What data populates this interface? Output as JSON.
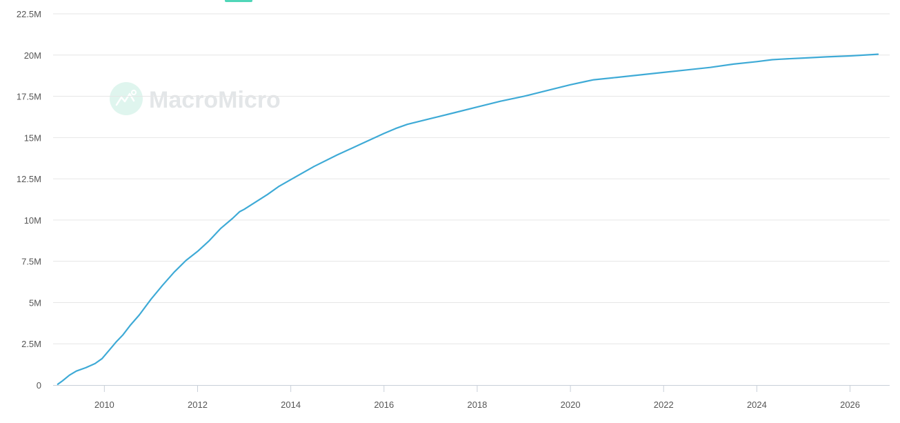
{
  "brand": {
    "watermark": "MacroMicro",
    "watermark_color": "#e3e6e8",
    "logo_color": "#dff5ee",
    "legend_chip_color": "#4fd6b8"
  },
  "chart_data": {
    "type": "line",
    "title": "",
    "xlabel": "",
    "ylabel": "",
    "xlim": [
      2008.9,
      2026.85
    ],
    "ylim": [
      0,
      22500000
    ],
    "y_ticks": [
      0,
      2500000,
      5000000,
      7500000,
      10000000,
      12500000,
      15000000,
      17500000,
      20000000,
      22500000
    ],
    "y_tick_labels": [
      "0",
      "2.5M",
      "5M",
      "7.5M",
      "10M",
      "12.5M",
      "15M",
      "17.5M",
      "20M",
      "22.5M"
    ],
    "x_ticks": [
      2010,
      2012,
      2014,
      2016,
      2018,
      2020,
      2022,
      2024,
      2026
    ],
    "x_tick_labels": [
      "2010",
      "2012",
      "2014",
      "2016",
      "2018",
      "2020",
      "2022",
      "2024",
      "2026"
    ],
    "grid": "horizontal",
    "line_color": "#3eaad6",
    "series": [
      {
        "x": [
          2009.0,
          2009.1,
          2009.25,
          2009.4,
          2009.6,
          2009.8,
          2009.95,
          2010.1,
          2010.25,
          2010.4,
          2010.55,
          2010.75,
          2011.0,
          2011.25,
          2011.5,
          2011.75,
          2012.0,
          2012.25,
          2012.5,
          2012.75,
          2012.9,
          2013.0,
          2013.25,
          2013.5,
          2013.75,
          2014.0,
          2014.5,
          2015.0,
          2015.5,
          2016.0,
          2016.25,
          2016.5,
          2017.0,
          2017.5,
          2018.0,
          2018.5,
          2019.0,
          2019.5,
          2020.0,
          2020.33,
          2020.5,
          2021.0,
          2021.5,
          2022.0,
          2022.5,
          2023.0,
          2023.5,
          2024.0,
          2024.33,
          2024.5,
          2025.0,
          2025.5,
          2026.0,
          2026.6
        ],
        "values": [
          50000,
          250000,
          600000,
          850000,
          1050000,
          1300000,
          1600000,
          2100000,
          2600000,
          3050000,
          3600000,
          4250000,
          5200000,
          6050000,
          6850000,
          7550000,
          8100000,
          8750000,
          9500000,
          10100000,
          10500000,
          10650000,
          11100000,
          11550000,
          12050000,
          12450000,
          13250000,
          13950000,
          14600000,
          15250000,
          15550000,
          15800000,
          16150000,
          16500000,
          16850000,
          17200000,
          17500000,
          17850000,
          18200000,
          18400000,
          18500000,
          18650000,
          18800000,
          18950000,
          19100000,
          19250000,
          19450000,
          19600000,
          19720000,
          19750000,
          19820000,
          19890000,
          19950000,
          20050000
        ]
      }
    ]
  }
}
